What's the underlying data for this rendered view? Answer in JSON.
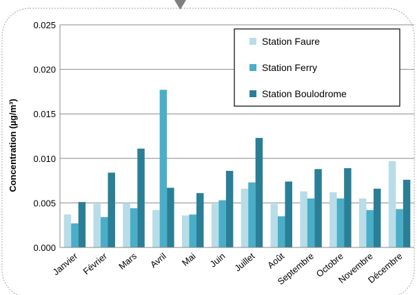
{
  "chart_data": {
    "type": "bar",
    "title": "",
    "xlabel": "",
    "ylabel": "Concentration (µg/m³)",
    "ylim": [
      0,
      0.025
    ],
    "yticks": [
      "0.000",
      "0.005",
      "0.010",
      "0.015",
      "0.020",
      "0.025"
    ],
    "grid": true,
    "legend_position": "top-right",
    "categories": [
      "Janvier",
      "Février",
      "Mars",
      "Avril",
      "Mai",
      "Juin",
      "Juillet",
      "Août",
      "Septembre",
      "Octobre",
      "Novembre",
      "Décembre"
    ],
    "series": [
      {
        "name": "Station Faure",
        "color": "#b8dde8",
        "values": [
          0.0037,
          0.0049,
          0.005,
          0.0042,
          0.0036,
          0.0049,
          0.0066,
          0.0049,
          0.0063,
          0.0062,
          0.0055,
          0.0097
        ]
      },
      {
        "name": "Station Ferry",
        "color": "#4aaec8",
        "values": [
          0.0027,
          0.0034,
          0.0044,
          0.0177,
          0.0037,
          0.0053,
          0.0073,
          0.0035,
          0.0055,
          0.0055,
          0.0042,
          0.0043
        ]
      },
      {
        "name": "Station Boulodrome",
        "color": "#2a7f96",
        "values": [
          0.0051,
          0.0084,
          0.0111,
          0.0067,
          0.0061,
          0.0086,
          0.0123,
          0.0074,
          0.0088,
          0.0089,
          0.0066,
          0.0076
        ]
      }
    ]
  }
}
